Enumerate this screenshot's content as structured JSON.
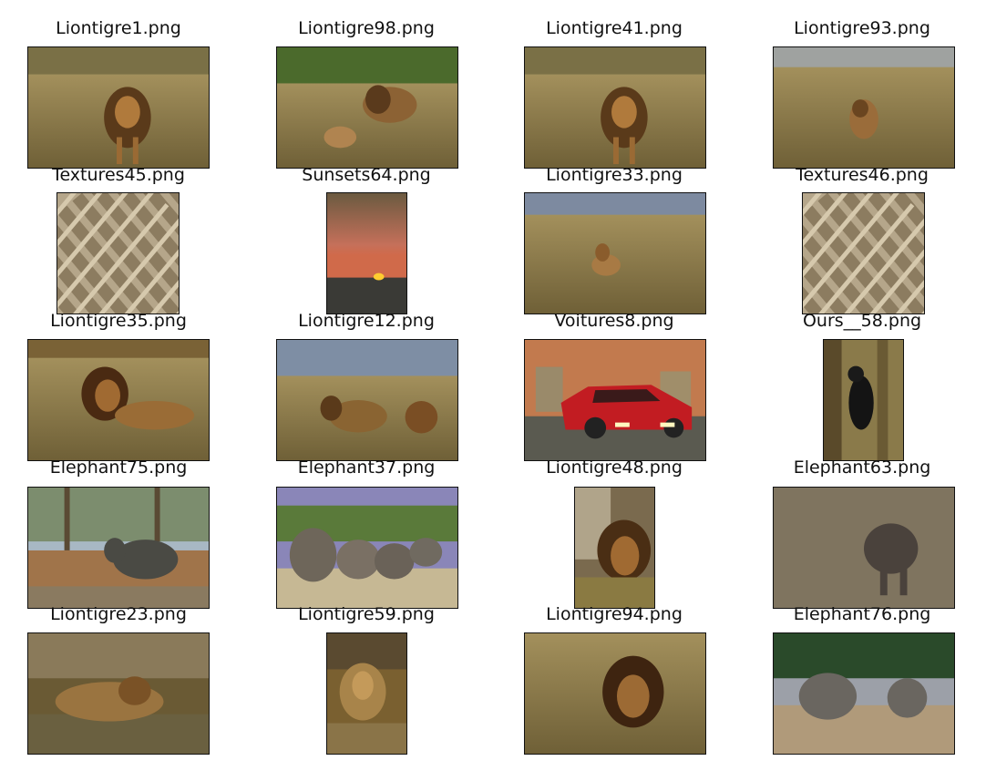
{
  "grid": {
    "items": [
      {
        "title": "Liontigre1.png",
        "kind": "lion-grass"
      },
      {
        "title": "Liontigre98.png",
        "kind": "lion-pair"
      },
      {
        "title": "Liontigre41.png",
        "kind": "lion-grass"
      },
      {
        "title": "Liontigre93.png",
        "kind": "lion-field"
      },
      {
        "title": "Textures45.png",
        "kind": "rope"
      },
      {
        "title": "Sunsets64.png",
        "kind": "sunset"
      },
      {
        "title": "Liontigre33.png",
        "kind": "lion-lying-field"
      },
      {
        "title": "Textures46.png",
        "kind": "rope"
      },
      {
        "title": "Liontigre35.png",
        "kind": "lion-lying"
      },
      {
        "title": "Liontigre12.png",
        "kind": "lion-pair-field"
      },
      {
        "title": "Voitures8.png",
        "kind": "car"
      },
      {
        "title": "Ours__58.png",
        "kind": "bear"
      },
      {
        "title": "Elephant75.png",
        "kind": "elephant-trees"
      },
      {
        "title": "Elephant37.png",
        "kind": "elephant-herd"
      },
      {
        "title": "Liontigre48.png",
        "kind": "lion-rock"
      },
      {
        "title": "Elephant63.png",
        "kind": "elephant-bush"
      },
      {
        "title": "Liontigre23.png",
        "kind": "lion-rest"
      },
      {
        "title": "Liontigre59.png",
        "kind": "lion-portrait"
      },
      {
        "title": "Liontigre94.png",
        "kind": "lion-face"
      },
      {
        "title": "Elephant76.png",
        "kind": "elephant-pair"
      }
    ]
  }
}
